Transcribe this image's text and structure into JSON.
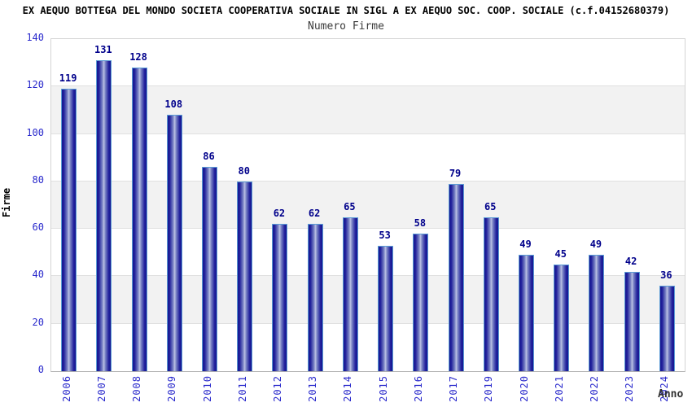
{
  "chart": {
    "title": "EX AEQUO BOTTEGA DEL MONDO SOCIETA COOPERATIVA SOCIALE IN SIGL A EX AEQUO SOC. COOP. SOCIALE (c.f.04152680379)",
    "subtitle": "Numero Firme"
  },
  "chart_data": {
    "type": "bar",
    "title": "Numero Firme",
    "categories": [
      "2006",
      "2007",
      "2008",
      "2009",
      "2010",
      "2011",
      "2012",
      "2013",
      "2014",
      "2015",
      "2016",
      "2017",
      "2019",
      "2020",
      "2021",
      "2022",
      "2023",
      "2024"
    ],
    "values": [
      119,
      131,
      128,
      108,
      86,
      80,
      62,
      62,
      65,
      53,
      58,
      79,
      65,
      49,
      45,
      49,
      42,
      36
    ],
    "xlabel": "Anno",
    "ylabel": "Firme",
    "ylim": [
      0,
      140
    ],
    "ytick_step": 20,
    "yticks": [
      0,
      20,
      40,
      60,
      80,
      100,
      120,
      140
    ],
    "grid": true,
    "legend": "none",
    "colors": {
      "bar_edge_dark": "#17178f",
      "bar_center_light": "#bcc2e5",
      "bar_outline": "#5b9bd5",
      "value_label": "#00008b",
      "tick_label": "#2a2acc",
      "band_fill": "#f2f2f2",
      "gridline": "#e0e0e0",
      "title": "#000000",
      "subtitle": "#3c3c3c"
    }
  }
}
